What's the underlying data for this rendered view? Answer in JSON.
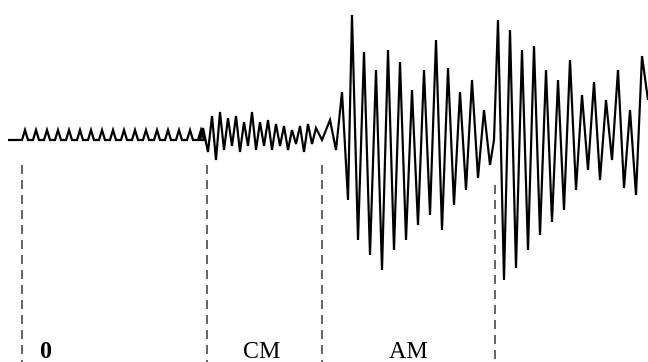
{
  "labels": {
    "zero": "0",
    "cm": "CM",
    "am": "AM"
  },
  "colors": {
    "trace": "#000000",
    "background": "#ffffff"
  }
}
